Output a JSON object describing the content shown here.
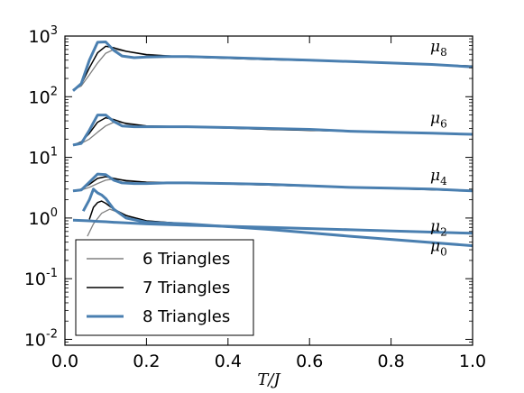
{
  "chart_data": {
    "type": "line",
    "xlabel": "T/J",
    "ylabel": "",
    "xlim": [
      0,
      1
    ],
    "ylim": [
      0.008,
      1000
    ],
    "yscale": "log",
    "grid": false,
    "legend_position": "bottom-left",
    "x_ticks": [
      "0.0",
      "0.2",
      "0.4",
      "0.6",
      "0.8",
      "1.0"
    ],
    "y_ticks": [
      {
        "base": "10",
        "exp": "-2"
      },
      {
        "base": "10",
        "exp": "-1"
      },
      {
        "base": "10",
        "exp": "0"
      },
      {
        "base": "10",
        "exp": "1"
      },
      {
        "base": "10",
        "exp": "2"
      },
      {
        "base": "10",
        "exp": "3"
      }
    ],
    "legend": [
      "6 Triangles",
      "7 Triangles",
      "8 Triangles"
    ],
    "colors": {
      "6 Triangles": "#808080",
      "7 Triangles": "#000000",
      "8 Triangles": "#4a7fb0"
    },
    "moment_labels": [
      {
        "base": "μ",
        "sub": "8",
        "y": 640
      },
      {
        "base": "μ",
        "sub": "6",
        "y": 42
      },
      {
        "base": "μ",
        "sub": "4",
        "y": 4.8
      },
      {
        "base": "μ",
        "sub": "2",
        "y": 0.7
      },
      {
        "base": "μ",
        "sub": "0",
        "y": 0.33
      }
    ],
    "series": [
      {
        "legend_index": 0,
        "x": [
          0.02,
          0.04,
          0.06,
          0.08,
          0.1,
          0.12,
          0.15,
          0.2,
          0.3,
          0.5,
          0.7,
          1.0
        ],
        "y": [
          130,
          150,
          230,
          360,
          520,
          600,
          560,
          500,
          450,
          410,
          380,
          320
        ]
      },
      {
        "legend_index": 1,
        "x": [
          0.02,
          0.04,
          0.06,
          0.08,
          0.1,
          0.12,
          0.15,
          0.2,
          0.3,
          0.5,
          0.7,
          1.0
        ],
        "y": [
          130,
          160,
          300,
          530,
          680,
          640,
          560,
          490,
          450,
          410,
          380,
          320
        ]
      },
      {
        "legend_index": 2,
        "x": [
          0.02,
          0.04,
          0.06,
          0.08,
          0.1,
          0.12,
          0.14,
          0.17,
          0.2,
          0.25,
          0.3,
          0.4,
          0.5,
          0.6,
          0.7,
          0.8,
          0.9,
          1.0
        ],
        "y": [
          125,
          165,
          400,
          790,
          800,
          580,
          470,
          440,
          450,
          460,
          460,
          440,
          420,
          400,
          380,
          360,
          340,
          310
        ]
      },
      {
        "legend_index": 0,
        "x": [
          0.02,
          0.04,
          0.06,
          0.08,
          0.1,
          0.12,
          0.15,
          0.2,
          0.3,
          0.5,
          0.7,
          1.0
        ],
        "y": [
          16,
          17,
          20,
          26,
          33,
          38,
          37,
          33,
          32,
          29,
          27,
          24
        ]
      },
      {
        "legend_index": 1,
        "x": [
          0.02,
          0.04,
          0.06,
          0.08,
          0.1,
          0.12,
          0.15,
          0.2,
          0.3,
          0.5,
          0.7,
          1.0
        ],
        "y": [
          16,
          18,
          25,
          38,
          45,
          42,
          36,
          33,
          32,
          29,
          27,
          24
        ]
      },
      {
        "legend_index": 2,
        "x": [
          0.02,
          0.04,
          0.06,
          0.08,
          0.1,
          0.12,
          0.14,
          0.17,
          0.2,
          0.25,
          0.3,
          0.4,
          0.5,
          0.6,
          0.7,
          0.8,
          0.9,
          1.0
        ],
        "y": [
          16,
          17,
          28,
          50,
          50,
          39,
          33,
          32,
          32,
          32,
          32,
          31,
          30,
          29,
          27,
          26,
          25,
          24
        ]
      },
      {
        "legend_index": 0,
        "x": [
          0.02,
          0.04,
          0.06,
          0.08,
          0.1,
          0.12,
          0.15,
          0.2,
          0.3,
          0.5,
          0.7,
          1.0
        ],
        "y": [
          2.8,
          2.9,
          3.2,
          3.7,
          4.2,
          4.4,
          4.2,
          3.9,
          3.8,
          3.5,
          3.2,
          2.8
        ]
      },
      {
        "legend_index": 1,
        "x": [
          0.02,
          0.04,
          0.06,
          0.08,
          0.1,
          0.12,
          0.15,
          0.2,
          0.3,
          0.5,
          0.7,
          1.0
        ],
        "y": [
          2.8,
          3.0,
          3.6,
          4.5,
          4.8,
          4.5,
          4.1,
          3.9,
          3.8,
          3.5,
          3.2,
          2.8
        ]
      },
      {
        "legend_index": 2,
        "x": [
          0.02,
          0.04,
          0.06,
          0.08,
          0.1,
          0.12,
          0.14,
          0.17,
          0.2,
          0.25,
          0.3,
          0.4,
          0.5,
          0.6,
          0.7,
          0.8,
          0.9,
          1.0
        ],
        "y": [
          2.8,
          2.9,
          3.9,
          5.3,
          5.2,
          4.2,
          3.8,
          3.7,
          3.7,
          3.8,
          3.8,
          3.7,
          3.6,
          3.4,
          3.2,
          3.1,
          3.0,
          2.8
        ]
      },
      {
        "legend_index": 0,
        "x": [
          0.02,
          0.04,
          0.06,
          0.08,
          0.1,
          0.12,
          0.15,
          0.2,
          0.3,
          0.5,
          0.7,
          1.0
        ],
        "y": [
          0.92,
          0.91,
          0.9,
          0.88,
          0.87,
          0.85,
          0.83,
          0.8,
          0.76,
          0.7,
          0.64,
          0.56
        ]
      },
      {
        "legend_index": 1,
        "x": [
          0.02,
          0.04,
          0.06,
          0.08,
          0.1,
          0.12,
          0.15,
          0.2,
          0.3,
          0.5,
          0.7,
          1.0
        ],
        "y": [
          0.92,
          0.91,
          0.9,
          0.88,
          0.87,
          0.85,
          0.83,
          0.8,
          0.76,
          0.7,
          0.64,
          0.56
        ]
      },
      {
        "legend_index": 2,
        "x": [
          0.02,
          0.04,
          0.06,
          0.08,
          0.1,
          0.12,
          0.15,
          0.2,
          0.3,
          0.5,
          0.7,
          1.0
        ],
        "y": [
          0.92,
          0.91,
          0.9,
          0.88,
          0.87,
          0.85,
          0.83,
          0.8,
          0.76,
          0.7,
          0.64,
          0.56
        ]
      },
      {
        "legend_index": 0,
        "x": [
          0.055,
          0.07,
          0.09,
          0.11,
          0.13,
          0.16,
          0.2,
          0.3,
          0.5,
          0.7,
          1.0
        ],
        "y": [
          0.5,
          0.8,
          1.2,
          1.4,
          1.25,
          1.05,
          0.9,
          0.8,
          0.65,
          0.5,
          0.35
        ]
      },
      {
        "legend_index": 1,
        "x": [
          0.06,
          0.07,
          0.08,
          0.09,
          0.1,
          0.12,
          0.15,
          0.2,
          0.3,
          0.5,
          0.7,
          1.0
        ],
        "y": [
          0.95,
          1.5,
          1.8,
          1.9,
          1.75,
          1.4,
          1.1,
          0.9,
          0.8,
          0.65,
          0.5,
          0.35
        ]
      },
      {
        "legend_index": 2,
        "x": [
          0.045,
          0.06,
          0.07,
          0.08,
          0.09,
          0.1,
          0.12,
          0.15,
          0.2,
          0.3,
          0.5,
          0.7,
          1.0
        ],
        "y": [
          1.3,
          2.0,
          3.0,
          2.6,
          2.4,
          2.1,
          1.4,
          1.0,
          0.85,
          0.8,
          0.65,
          0.5,
          0.35
        ]
      }
    ]
  }
}
